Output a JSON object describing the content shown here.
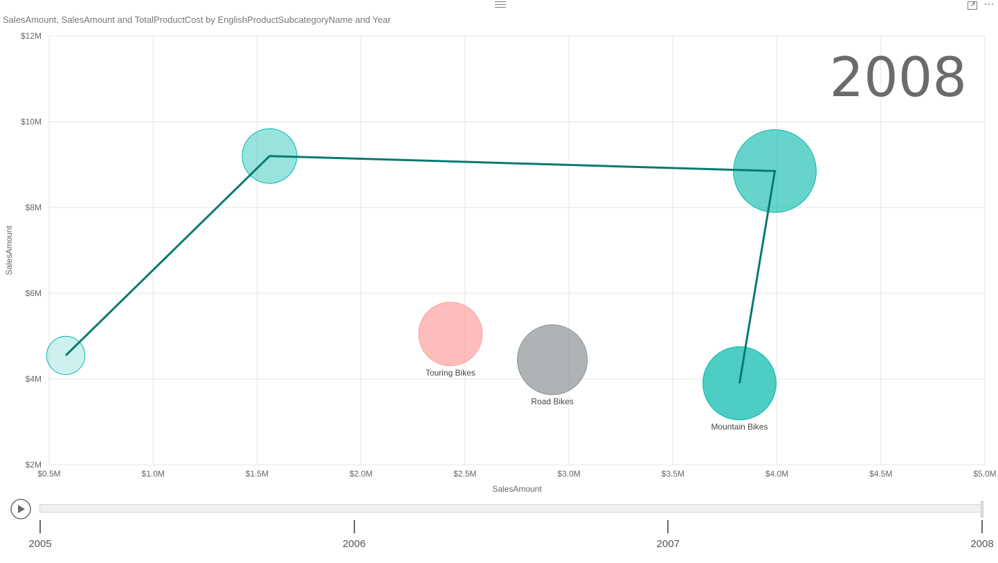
{
  "header": {
    "title": "SalesAmount, SalesAmount and TotalProductCost by EnglishProductSubcategoryName and Year",
    "drag_icon": "hamburger-icon",
    "focus_icon": "focus-mode-icon",
    "more_icon": "more-options-icon",
    "more_label": "···"
  },
  "chart_data": {
    "type": "scatter",
    "title": "SalesAmount, SalesAmount and TotalProductCost by EnglishProductSubcategoryName and Year",
    "xlabel": "SalesAmount",
    "ylabel": "SalesAmount",
    "xlim": [
      0.5,
      5.0
    ],
    "ylim": [
      2,
      12
    ],
    "x_unit": "$M",
    "y_unit": "$M",
    "x_ticks": [
      "$0.5M",
      "$1.0M",
      "$1.5M",
      "$2.0M",
      "$2.5M",
      "$3.0M",
      "$3.5M",
      "$4.0M",
      "$4.5M",
      "$5.0M"
    ],
    "y_ticks": [
      "$2M",
      "$4M",
      "$6M",
      "$8M",
      "$10M",
      "$12M"
    ],
    "grid": true,
    "play_axis_value": "2008",
    "series": [
      {
        "name": "Touring Bikes",
        "color": "#fd9f9f",
        "x": 2.43,
        "y": 5.05,
        "size": 1.0
      },
      {
        "name": "Road Bikes",
        "color": "#8e9396",
        "x": 2.92,
        "y": 4.45,
        "size": 1.1
      },
      {
        "name": "Mountain Bikes",
        "color": "#01b8aa",
        "x": 3.82,
        "y": 3.9,
        "size": 1.15
      }
    ],
    "trail": {
      "name": "Mountain Bikes",
      "color": "#01b8aa",
      "line_color": "#077a6e",
      "points": [
        {
          "year": "2005",
          "x": 0.58,
          "y": 4.55,
          "size": 0.6,
          "opacity": 0.2
        },
        {
          "year": "2006",
          "x": 1.56,
          "y": 9.2,
          "size": 0.86,
          "opacity": 0.4
        },
        {
          "year": "2007",
          "x": 3.99,
          "y": 8.85,
          "size": 1.3,
          "opacity": 0.6
        },
        {
          "year": "2008",
          "x": 3.82,
          "y": 3.9,
          "size": 1.15,
          "opacity": 0.85
        }
      ]
    }
  },
  "play_axis": {
    "play_icon": "play-icon",
    "years": [
      "2005",
      "2006",
      "2007",
      "2008"
    ],
    "current": "2008",
    "progress": 1.0
  }
}
